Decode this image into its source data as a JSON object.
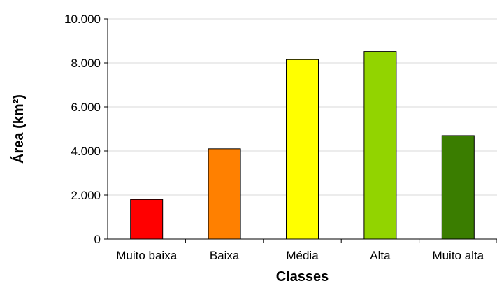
{
  "chart_data": {
    "type": "bar",
    "categories": [
      "Muito baixa",
      "Baixa",
      "Média",
      "Alta",
      "Muito alta"
    ],
    "values": [
      1800,
      4100,
      8150,
      8520,
      4700
    ],
    "colors": [
      "#ff0000",
      "#ff8000",
      "#ffff00",
      "#92d400",
      "#3a7d00"
    ],
    "xlabel": "Classes",
    "ylabel": "Área (km²)",
    "ylim": [
      0,
      10000
    ],
    "yticks": [
      0,
      2000,
      4000,
      6000,
      8000,
      10000
    ],
    "ytick_labels": [
      "0",
      "2.000",
      "4.000",
      "6.000",
      "8.000",
      "10.000"
    ],
    "grid": true,
    "legend": "none"
  }
}
